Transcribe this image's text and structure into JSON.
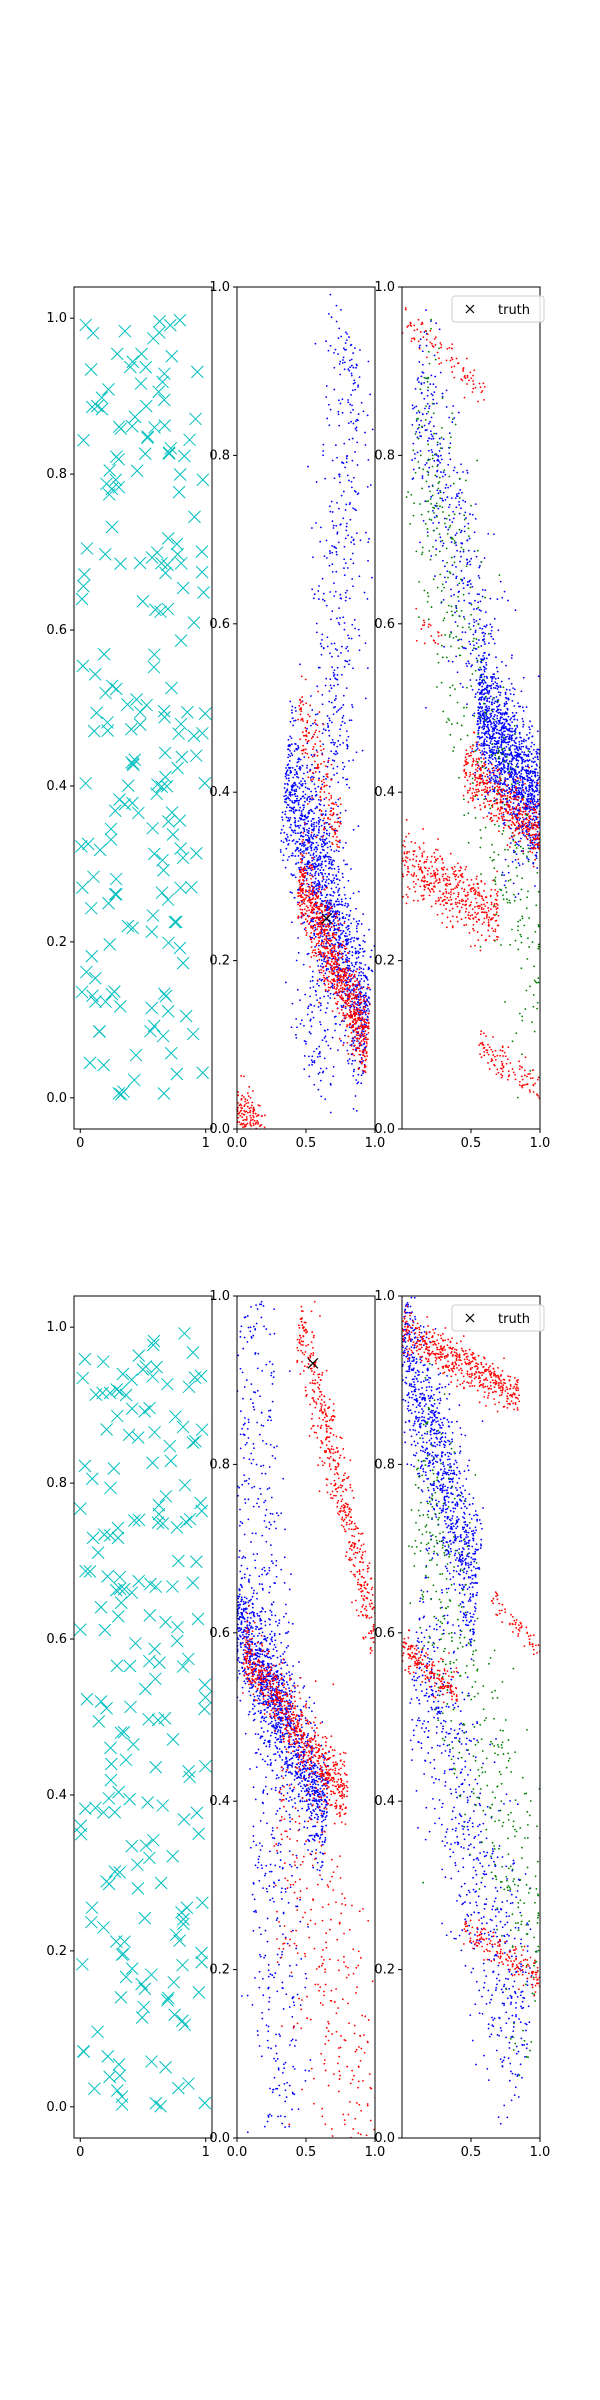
{
  "chart_data": [
    {
      "type": "scatter",
      "panel": "row1-col1",
      "xlim": [
        -0.05,
        1.05
      ],
      "ylim": [
        -0.04,
        1.04
      ],
      "xticks": [
        "0",
        "1"
      ],
      "xtick_values": [
        0,
        1
      ],
      "yticks": [
        "0.0",
        "0.2",
        "0.4",
        "0.6",
        "0.8",
        "1.0"
      ],
      "ytick_values": [
        0,
        0.2,
        0.4,
        0.6,
        0.8,
        1.0
      ],
      "marker": "x",
      "marker_color": "#00bfbf",
      "series": [
        {
          "name": "samples",
          "color": "#00bfbf",
          "marker": "x",
          "count": 200,
          "distribution": "uniform over [0,1]x[0,1]"
        }
      ]
    },
    {
      "type": "scatter",
      "panel": "row1-col2",
      "xlim": [
        0.0,
        1.0
      ],
      "ylim": [
        0.0,
        1.0
      ],
      "xticks": [
        "0.0",
        "0.5",
        "1.0"
      ],
      "xtick_values": [
        0,
        0.5,
        1.0
      ],
      "yticks": [
        "0.0",
        "0.2",
        "0.4",
        "0.6",
        "0.8",
        "1.0"
      ],
      "ytick_values": [
        0,
        0.2,
        0.4,
        0.6,
        0.8,
        1.0
      ],
      "series": [
        {
          "name": "blue samples",
          "color": "#0000ff",
          "marker": "point",
          "bands": [
            {
              "from": [
                0.35,
                0.42
              ],
              "to": [
                0.95,
                0.12
              ],
              "width": 0.09,
              "count": 1400
            },
            {
              "from": [
                0.55,
                0.05
              ],
              "to": [
                0.85,
                0.95
              ],
              "width": 0.18,
              "count": 700
            }
          ]
        },
        {
          "name": "red samples",
          "color": "#ff0000",
          "marker": "point",
          "bands": [
            {
              "from": [
                0.45,
                0.3
              ],
              "to": [
                0.95,
                0.1
              ],
              "width": 0.05,
              "count": 900
            },
            {
              "from": [
                0.0,
                0.02
              ],
              "to": [
                0.2,
                -0.02
              ],
              "width": 0.04,
              "count": 220
            },
            {
              "from": [
                0.45,
                0.5
              ],
              "to": [
                0.75,
                0.35
              ],
              "width": 0.05,
              "count": 180
            }
          ]
        }
      ],
      "truth": [
        {
          "x": 0.65,
          "y": 0.25
        }
      ]
    },
    {
      "type": "scatter",
      "panel": "row1-col3",
      "xlim": [
        0.0,
        1.0
      ],
      "ylim": [
        0.0,
        1.0
      ],
      "xticks": [
        "0.5",
        "1.0"
      ],
      "xtick_values": [
        0.5,
        1.0
      ],
      "yticks": [
        "0.0",
        "0.2",
        "0.4",
        "0.6",
        "0.8",
        "1.0"
      ],
      "ytick_values": [
        0,
        0.2,
        0.4,
        0.6,
        0.8,
        1.0
      ],
      "legend": {
        "label": "truth",
        "marker": "x",
        "location": "upper right"
      },
      "series": [
        {
          "name": "blue samples",
          "color": "#0000ff",
          "marker": "point",
          "bands": [
            {
              "from": [
                0.55,
                0.5
              ],
              "to": [
                1.0,
                0.38
              ],
              "width": 0.07,
              "count": 1200
            },
            {
              "from": [
                0.1,
                0.9
              ],
              "to": [
                0.9,
                0.35
              ],
              "width": 0.12,
              "count": 600
            }
          ]
        },
        {
          "name": "green samples",
          "color": "#008000",
          "marker": "point",
          "bands": [
            {
              "from": [
                0.1,
                0.85
              ],
              "to": [
                1.0,
                0.15
              ],
              "width": 0.16,
              "count": 450
            }
          ]
        },
        {
          "name": "red samples",
          "color": "#ff0000",
          "marker": "point",
          "bands": [
            {
              "from": [
                0.0,
                0.32
              ],
              "to": [
                0.7,
                0.25
              ],
              "width": 0.04,
              "count": 450
            },
            {
              "from": [
                0.45,
                0.43
              ],
              "to": [
                1.0,
                0.35
              ],
              "width": 0.035,
              "count": 450
            },
            {
              "from": [
                0.0,
                0.96
              ],
              "to": [
                0.6,
                0.88
              ],
              "width": 0.02,
              "count": 90
            },
            {
              "from": [
                0.55,
                0.1
              ],
              "to": [
                1.0,
                0.05
              ],
              "width": 0.02,
              "count": 110
            },
            {
              "from": [
                0.1,
                0.6
              ],
              "to": [
                0.3,
                0.58
              ],
              "width": 0.015,
              "count": 20
            }
          ]
        }
      ],
      "truth": []
    },
    {
      "type": "scatter",
      "panel": "row2-col1",
      "xlim": [
        -0.05,
        1.05
      ],
      "ylim": [
        -0.04,
        1.04
      ],
      "xticks": [
        "0",
        "1"
      ],
      "xtick_values": [
        0,
        1
      ],
      "yticks": [
        "0.0",
        "0.2",
        "0.4",
        "0.6",
        "0.8",
        "1.0"
      ],
      "ytick_values": [
        0,
        0.2,
        0.4,
        0.6,
        0.8,
        1.0
      ],
      "marker": "x",
      "marker_color": "#00bfbf",
      "series": [
        {
          "name": "samples",
          "color": "#00bfbf",
          "marker": "x",
          "count": 200,
          "distribution": "uniform over [0,1]x[0,1]"
        }
      ]
    },
    {
      "type": "scatter",
      "panel": "row2-col2",
      "xlim": [
        0.0,
        1.0
      ],
      "ylim": [
        0.0,
        1.0
      ],
      "xticks": [
        "0.0",
        "0.5",
        "1.0"
      ],
      "xtick_values": [
        0,
        0.5,
        1.0
      ],
      "yticks": [
        "0.0",
        "0.2",
        "0.4",
        "0.6",
        "0.8",
        "1.0"
      ],
      "ytick_values": [
        0,
        0.2,
        0.4,
        0.6,
        0.8,
        1.0
      ],
      "series": [
        {
          "name": "blue samples",
          "color": "#0000ff",
          "marker": "point",
          "bands": [
            {
              "from": [
                0.0,
                0.62
              ],
              "to": [
                0.65,
                0.38
              ],
              "width": 0.07,
              "count": 1300
            },
            {
              "from": [
                0.1,
                1.0
              ],
              "to": [
                0.35,
                0.0
              ],
              "width": 0.18,
              "count": 600
            }
          ]
        },
        {
          "name": "red samples",
          "color": "#ff0000",
          "marker": "point",
          "bands": [
            {
              "from": [
                0.05,
                0.58
              ],
              "to": [
                0.8,
                0.4
              ],
              "width": 0.04,
              "count": 700
            },
            {
              "from": [
                0.45,
                0.97
              ],
              "to": [
                1.0,
                0.6
              ],
              "width": 0.05,
              "count": 500
            },
            {
              "from": [
                0.3,
                0.4
              ],
              "to": [
                1.0,
                0.0
              ],
              "width": 0.2,
              "count": 350
            }
          ]
        }
      ],
      "truth": [
        {
          "x": 0.55,
          "y": 0.92
        }
      ]
    },
    {
      "type": "scatter",
      "panel": "row2-col3",
      "xlim": [
        0.0,
        1.0
      ],
      "ylim": [
        0.0,
        1.0
      ],
      "xticks": [
        "0.5",
        "1.0"
      ],
      "xtick_values": [
        0.5,
        1.0
      ],
      "yticks": [
        "0.0",
        "0.2",
        "0.4",
        "0.6",
        "0.8",
        "1.0"
      ],
      "ytick_values": [
        0,
        0.2,
        0.4,
        0.6,
        0.8,
        1.0
      ],
      "legend": {
        "label": "truth",
        "marker": "x",
        "location": "upper right"
      },
      "series": [
        {
          "name": "blue samples",
          "color": "#0000ff",
          "marker": "point",
          "bands": [
            {
              "from": [
                0.0,
                0.95
              ],
              "to": [
                0.55,
                0.65
              ],
              "width": 0.09,
              "count": 1000
            },
            {
              "from": [
                0.1,
                0.6
              ],
              "to": [
                0.9,
                0.1
              ],
              "width": 0.15,
              "count": 700
            }
          ]
        },
        {
          "name": "green samples",
          "color": "#008000",
          "marker": "point",
          "bands": [
            {
              "from": [
                0.1,
                0.8
              ],
              "to": [
                1.0,
                0.2
              ],
              "width": 0.16,
              "count": 450
            }
          ]
        },
        {
          "name": "red samples",
          "color": "#ff0000",
          "marker": "point",
          "bands": [
            {
              "from": [
                0.0,
                0.96
              ],
              "to": [
                0.85,
                0.88
              ],
              "width": 0.025,
              "count": 500
            },
            {
              "from": [
                0.0,
                0.58
              ],
              "to": [
                0.4,
                0.53
              ],
              "width": 0.02,
              "count": 180
            },
            {
              "from": [
                0.45,
                0.25
              ],
              "to": [
                1.0,
                0.19
              ],
              "width": 0.02,
              "count": 160
            },
            {
              "from": [
                0.65,
                0.64
              ],
              "to": [
                1.0,
                0.58
              ],
              "width": 0.015,
              "count": 60
            }
          ]
        }
      ],
      "truth": []
    }
  ]
}
